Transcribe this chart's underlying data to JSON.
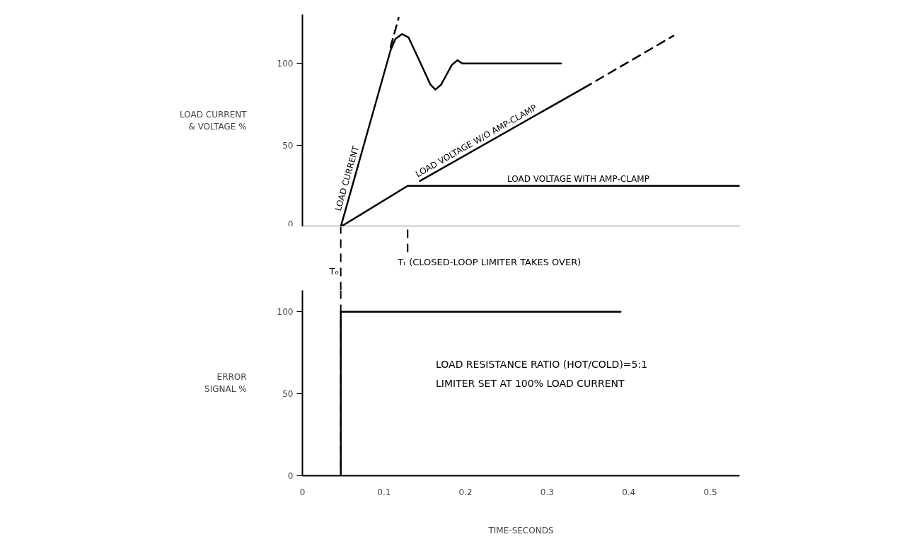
{
  "chart_data": [
    {
      "type": "line",
      "ylabel": "LOAD CURRENT & VOLTAGE %",
      "xlim": [
        0,
        0.536
      ],
      "ylim": [
        0,
        130
      ],
      "yticks": [
        0,
        50,
        100
      ],
      "tick_labels": "y",
      "series": [
        {
          "name": "LOAD CURRENT",
          "color": "#000000",
          "x": [
            0.047,
            0.108,
            0.114,
            0.122,
            0.13,
            0.145,
            0.157,
            0.163,
            0.17,
            0.183,
            0.19,
            0.196,
            0.317
          ],
          "values": [
            0,
            108,
            115,
            118,
            116,
            100,
            87,
            84,
            87,
            99,
            102,
            100,
            100
          ]
        },
        {
          "color": "#000000",
          "x": [
            0.108,
            0.118
          ],
          "values": [
            110,
            128
          ],
          "line_style": "dashed"
        },
        {
          "name": "LOAD VOLTAGE W/O AMP-CLAMP",
          "color": "#000000",
          "x": [
            0.144,
            0.345
          ],
          "values": [
            28,
            85
          ]
        },
        {
          "color": "#000000",
          "x": [
            0.345,
            0.455
          ],
          "values": [
            85,
            117
          ],
          "line_style": "dashed"
        },
        {
          "name": "LOAD VOLTAGE WITH AMP-CLAMP",
          "color": "#000000",
          "x": [
            0.047,
            0.129,
            0.536
          ],
          "values": [
            0,
            25,
            25
          ]
        }
      ],
      "ref_lines": [
        {
          "axis": "x",
          "value": 0.047,
          "label": "T₀",
          "line_style": "dashed"
        },
        {
          "axis": "x",
          "value": 0.129,
          "label": "Tₜ (CLOSED-LOOP LIMITER TAKES OVER)",
          "line_style": "dashed"
        }
      ]
    },
    {
      "type": "line",
      "ylabel": "ERROR SIGNAL %",
      "xlabel": "TIME-SECONDS",
      "xlim": [
        0,
        0.536
      ],
      "ylim": [
        0,
        113
      ],
      "xticks": [
        0,
        0.1,
        0.2,
        0.3,
        0.4,
        0.5
      ],
      "yticks": [
        0,
        50,
        100
      ],
      "series": [
        {
          "color": "#000000",
          "x": [
            0.047,
            0.047,
            0.39
          ],
          "values": [
            0,
            100,
            100
          ]
        }
      ],
      "ref_lines": [
        {
          "axis": "x",
          "value": 0.047,
          "line_style": "dashed"
        }
      ],
      "annotations": [
        "LOAD RESISTANCE RATIO (HOT/COLD)=5:1",
        "LIMITER SET AT 100% LOAD CURRENT"
      ]
    }
  ]
}
